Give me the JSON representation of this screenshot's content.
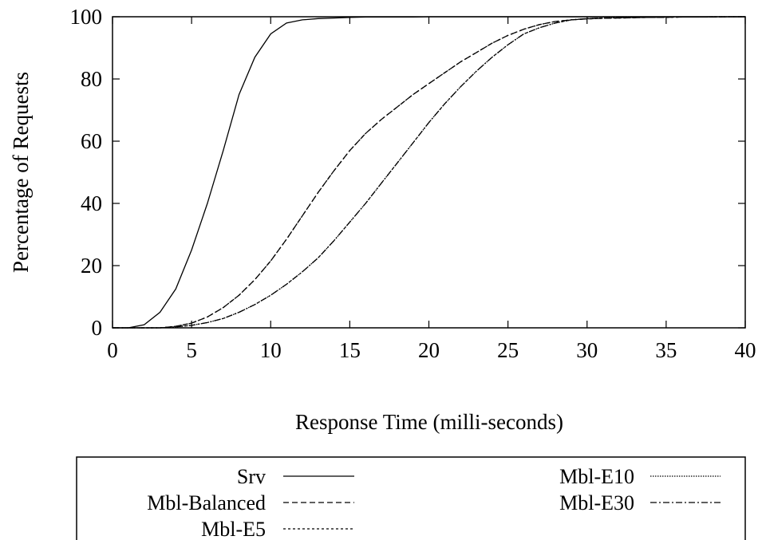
{
  "chart_data": {
    "type": "line",
    "title": "",
    "xlabel": "Response Time (milli-seconds)",
    "ylabel": "Percentage of Requests",
    "xlim": [
      0,
      40
    ],
    "ylim": [
      0,
      100
    ],
    "xticks": [
      "0",
      "5",
      "10",
      "15",
      "20",
      "25",
      "30",
      "35",
      "40"
    ],
    "yticks": [
      "0",
      "20",
      "40",
      "60",
      "80",
      "100"
    ],
    "grid": false,
    "legend_position": "bottom",
    "x": [
      0,
      1,
      2,
      3,
      4,
      5,
      6,
      7,
      8,
      9,
      10,
      11,
      12,
      13,
      14,
      15,
      16,
      17,
      18,
      19,
      20,
      21,
      22,
      23,
      24,
      25,
      26,
      27,
      28,
      29,
      30,
      31,
      32,
      33,
      34,
      35,
      36,
      37,
      38,
      39,
      40
    ],
    "series": [
      {
        "name": "Srv",
        "dash": "none",
        "values": [
          0,
          0,
          1,
          5,
          12.5,
          25,
          40,
          57,
          75,
          87,
          94.5,
          98,
          99,
          99.4,
          99.6,
          99.8,
          99.9,
          99.9,
          99.9,
          99.9,
          100,
          100,
          100,
          100,
          100,
          100,
          100,
          100,
          100,
          100,
          100,
          100,
          100,
          100,
          100,
          100,
          100,
          100,
          100,
          100,
          100
        ]
      },
      {
        "name": "Mbl-Balanced",
        "dash": "7,4",
        "values": [
          0,
          0,
          0,
          0,
          0.5,
          1.5,
          3.5,
          6.5,
          10.5,
          15.5,
          21.5,
          28.5,
          36,
          43.5,
          50.5,
          57,
          62.5,
          67,
          71,
          75,
          78.5,
          82,
          85.5,
          88.5,
          91.5,
          94,
          96,
          97.5,
          98.5,
          99,
          99.3,
          99.5,
          99.6,
          99.7,
          99.8,
          99.8,
          99.9,
          99.9,
          99.9,
          100,
          100
        ]
      },
      {
        "name": "Mbl-E5",
        "dash": "3,3",
        "values": [
          0,
          0,
          0,
          0,
          0.5,
          1.5,
          3.5,
          6.5,
          10.5,
          15.5,
          21.5,
          28.5,
          36,
          43.5,
          50.5,
          57,
          62.5,
          67,
          71,
          75,
          78.5,
          82,
          85.5,
          88.5,
          91.5,
          94,
          96,
          97.5,
          98.5,
          99,
          99.3,
          99.5,
          99.6,
          99.7,
          99.8,
          99.8,
          99.9,
          99.9,
          99.9,
          100,
          100
        ]
      },
      {
        "name": "Mbl-E10",
        "dash": "1.5,1.5",
        "values": [
          0,
          0,
          0,
          0,
          0.3,
          0.8,
          1.7,
          3,
          5,
          7.5,
          10.5,
          14,
          18,
          22.5,
          28,
          34,
          40,
          46.5,
          53,
          59.5,
          66,
          72,
          77.5,
          82.5,
          87,
          91,
          94.5,
          96.5,
          98,
          99,
          99.4,
          99.6,
          99.7,
          99.8,
          99.8,
          99.9,
          99.9,
          99.9,
          100,
          100,
          100
        ]
      },
      {
        "name": "Mbl-E30",
        "dash": "8,3,2,3",
        "values": [
          0,
          0,
          0,
          0,
          0.3,
          0.8,
          1.7,
          3,
          5,
          7.5,
          10.5,
          14,
          18,
          22.5,
          28,
          34,
          40,
          46.5,
          53,
          59.5,
          66,
          72,
          77.5,
          82.5,
          87,
          91,
          94.5,
          96.5,
          98,
          99,
          99.4,
          99.6,
          99.7,
          99.8,
          99.8,
          99.9,
          99.9,
          99.9,
          100,
          100,
          100
        ]
      }
    ]
  }
}
